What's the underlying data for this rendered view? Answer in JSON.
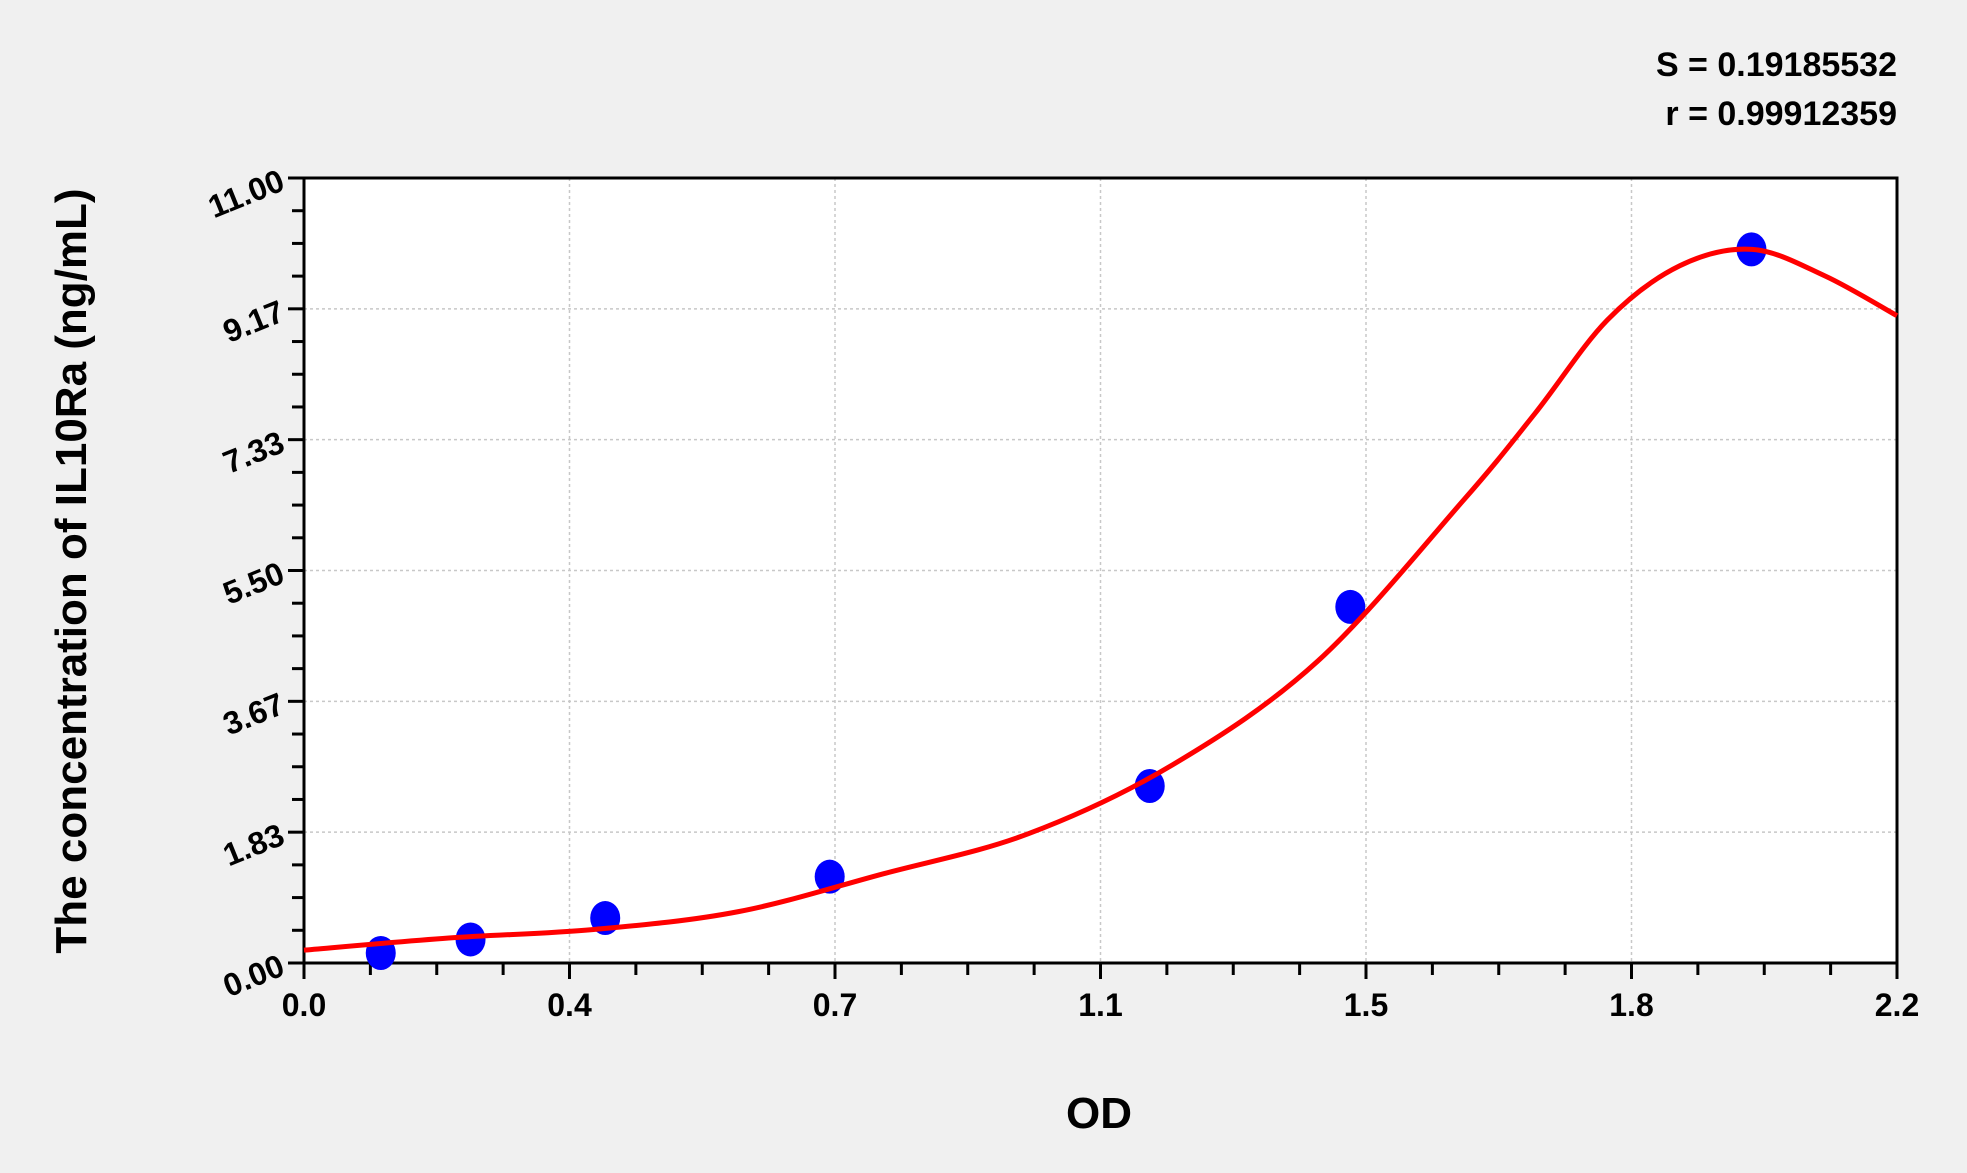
{
  "chart_data": {
    "type": "scatter",
    "title": "",
    "xlabel": "OD",
    "ylabel": "The concentration of IL10Ra (ng/mL)",
    "xlim": [
      0,
      2.2
    ],
    "ylim": [
      0,
      11
    ],
    "x_ticks": [
      "0.0",
      "0.4",
      "0.7",
      "1.1",
      "1.5",
      "1.8",
      "2.2"
    ],
    "y_ticks": [
      "0.00",
      "1.83",
      "3.67",
      "5.50",
      "7.33",
      "9.17",
      "11.00"
    ],
    "grid": true,
    "annotations": [
      "S = 0.19185532",
      "r = 0.99912359"
    ],
    "points": {
      "color": "#0000ff",
      "x": [
        0.106,
        0.23,
        0.416,
        0.726,
        1.168,
        1.445,
        1.999
      ],
      "y": [
        0.14,
        0.33,
        0.63,
        1.21,
        2.48,
        4.99,
        10.0
      ]
    },
    "fit_curve": {
      "color": "#ff0000",
      "x": [
        0,
        0.2,
        0.4,
        0.6,
        0.8,
        1.0,
        1.2,
        1.4,
        1.6,
        1.7,
        1.8,
        1.9,
        2.0,
        2.1,
        2.2
      ],
      "y": [
        0.18,
        0.35,
        0.47,
        0.72,
        1.25,
        1.81,
        2.78,
        4.23,
        6.47,
        7.7,
        9.01,
        9.77,
        10.0,
        9.63,
        9.07
      ]
    }
  }
}
